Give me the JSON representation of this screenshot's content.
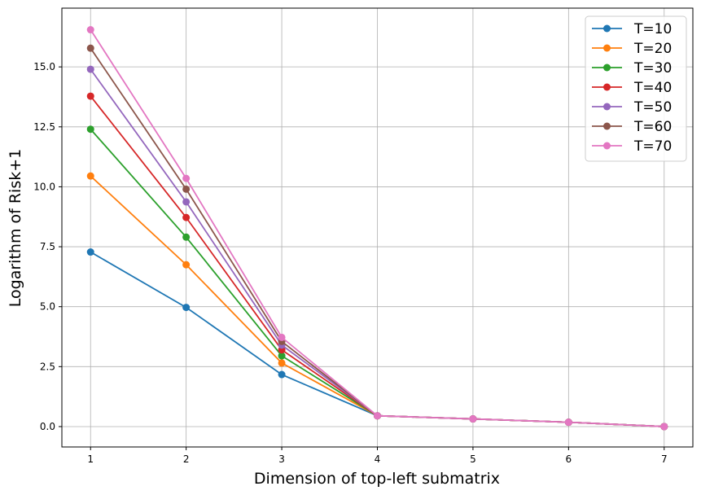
{
  "chart_data": {
    "type": "line",
    "xlabel": "Dimension of top-left submatrix",
    "ylabel": "Logarithm of Risk+1",
    "x": [
      1,
      2,
      3,
      4,
      5,
      6,
      7
    ],
    "xlim": [
      0.7,
      7.3
    ],
    "ylim": [
      -0.85,
      17.45
    ],
    "xticks": [
      1,
      2,
      3,
      4,
      5,
      6,
      7
    ],
    "yticks": [
      0.0,
      2.5,
      5.0,
      7.5,
      10.0,
      12.5,
      15.0
    ],
    "ytick_labels": [
      "0.0",
      "2.5",
      "5.0",
      "7.5",
      "10.0",
      "12.5",
      "15.0"
    ],
    "grid": true,
    "legend_position": "top-right",
    "series": [
      {
        "name": "T=10",
        "color": "#1f77b4",
        "values": [
          7.28,
          4.97,
          2.17,
          0.45,
          0.32,
          0.18,
          0.0
        ]
      },
      {
        "name": "T=20",
        "color": "#ff7f0e",
        "values": [
          10.45,
          6.75,
          2.65,
          0.45,
          0.32,
          0.18,
          0.0
        ]
      },
      {
        "name": "T=30",
        "color": "#2ca02c",
        "values": [
          12.4,
          7.9,
          2.95,
          0.45,
          0.32,
          0.18,
          0.0
        ]
      },
      {
        "name": "T=40",
        "color": "#d62728",
        "values": [
          13.78,
          8.72,
          3.2,
          0.45,
          0.32,
          0.18,
          0.0
        ]
      },
      {
        "name": "T=50",
        "color": "#9467bd",
        "values": [
          14.9,
          9.37,
          3.4,
          0.45,
          0.32,
          0.18,
          0.0
        ]
      },
      {
        "name": "T=60",
        "color": "#8c564b",
        "values": [
          15.78,
          9.9,
          3.55,
          0.45,
          0.32,
          0.18,
          0.0
        ]
      },
      {
        "name": "T=70",
        "color": "#e377c2",
        "values": [
          16.55,
          10.35,
          3.72,
          0.45,
          0.32,
          0.18,
          0.0
        ]
      }
    ]
  }
}
